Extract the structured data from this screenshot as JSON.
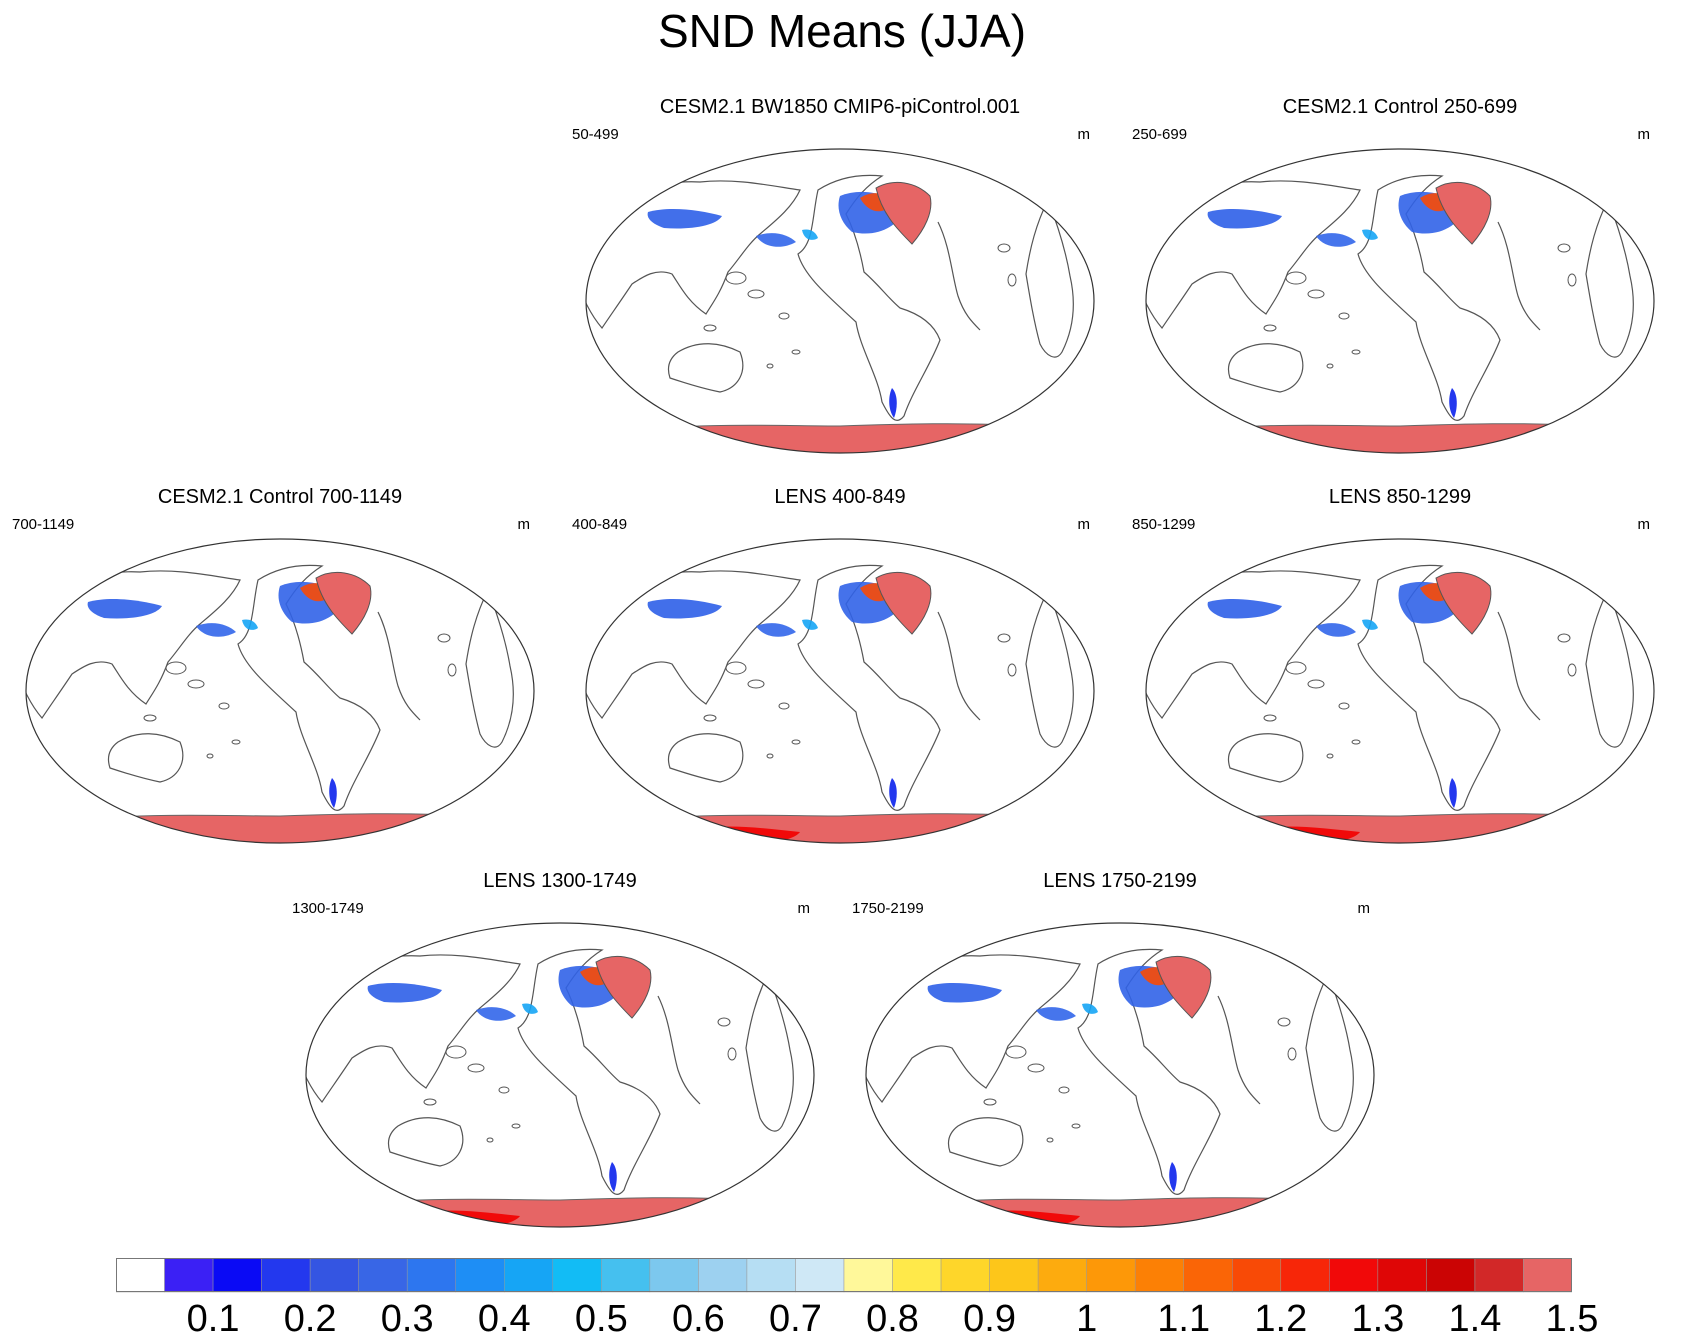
{
  "title": "SND Means (JJA)",
  "units": "m",
  "panels": [
    {
      "title": "CESM2.1 BW1850 CMIP6-piControl.001",
      "range": "50-499",
      "units": "m",
      "run": "control"
    },
    {
      "title": "CESM2.1 Control 250-699",
      "range": "250-699",
      "units": "m",
      "run": "control"
    },
    {
      "title": "CESM2.1 Control 700-1149",
      "range": "700-1149",
      "units": "m",
      "run": "control"
    },
    {
      "title": "LENS 400-849",
      "range": "400-849",
      "units": "m",
      "run": "lens"
    },
    {
      "title": "LENS 850-1299",
      "range": "850-1299",
      "units": "m",
      "run": "lens"
    },
    {
      "title": "LENS 1300-1749",
      "range": "1300-1749",
      "units": "m",
      "run": "lens"
    },
    {
      "title": "LENS 1750-2199",
      "range": "1750-2199",
      "units": "m",
      "run": "lens"
    }
  ],
  "colorbar": {
    "colors": [
      "#ffffff",
      "#3b20f5",
      "#0a0af5",
      "#2338ee",
      "#3455e2",
      "#3866e6",
      "#2d76ef",
      "#1e8ef5",
      "#16a5f5",
      "#12bcf5",
      "#45c0ef",
      "#7cc8ee",
      "#9dd1f0",
      "#b6def3",
      "#cfe8f6",
      "#fff89a",
      "#ffe94a",
      "#fed62a",
      "#fdc61a",
      "#fdab0e",
      "#fd9808",
      "#fc8005",
      "#fa6506",
      "#f84a06",
      "#f72608",
      "#f10909",
      "#df0606",
      "#cb0404",
      "#d22828",
      "#e66565"
    ],
    "tick_labels": [
      "0.1",
      "0.2",
      "0.3",
      "0.4",
      "0.5",
      "0.6",
      "0.7",
      "0.8",
      "0.9",
      "1",
      "1.1",
      "1.2",
      "1.3",
      "1.4",
      "1.5"
    ]
  }
}
